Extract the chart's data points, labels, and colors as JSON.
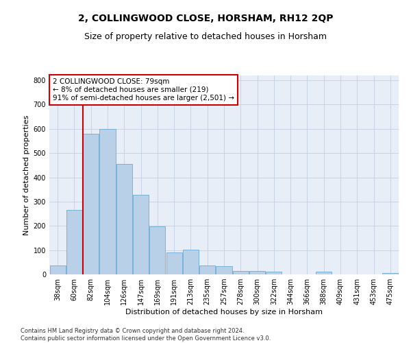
{
  "title": "2, COLLINGWOOD CLOSE, HORSHAM, RH12 2QP",
  "subtitle": "Size of property relative to detached houses in Horsham",
  "xlabel": "Distribution of detached houses by size in Horsham",
  "ylabel": "Number of detached properties",
  "categories": [
    "38sqm",
    "60sqm",
    "82sqm",
    "104sqm",
    "126sqm",
    "147sqm",
    "169sqm",
    "191sqm",
    "213sqm",
    "235sqm",
    "257sqm",
    "278sqm",
    "300sqm",
    "322sqm",
    "344sqm",
    "366sqm",
    "388sqm",
    "409sqm",
    "431sqm",
    "453sqm",
    "475sqm"
  ],
  "values": [
    38,
    265,
    580,
    600,
    455,
    327,
    197,
    90,
    103,
    37,
    35,
    15,
    15,
    10,
    0,
    0,
    10,
    0,
    0,
    0,
    7
  ],
  "bar_color": "#b8d0e8",
  "bar_edge_color": "#6aaad4",
  "vline_color": "#cc0000",
  "annotation_line1": "2 COLLINGWOOD CLOSE: 79sqm",
  "annotation_line2": "← 8% of detached houses are smaller (219)",
  "annotation_line3": "91% of semi-detached houses are larger (2,501) →",
  "annotation_box_color": "#ffffff",
  "annotation_box_edge_color": "#cc0000",
  "ylim": [
    0,
    820
  ],
  "yticks": [
    0,
    100,
    200,
    300,
    400,
    500,
    600,
    700,
    800
  ],
  "grid_color": "#c8d4e4",
  "background_color": "#e8eef8",
  "footer_line1": "Contains HM Land Registry data © Crown copyright and database right 2024.",
  "footer_line2": "Contains public sector information licensed under the Open Government Licence v3.0.",
  "title_fontsize": 10,
  "subtitle_fontsize": 9,
  "axis_label_fontsize": 8,
  "tick_fontsize": 7,
  "annotation_fontsize": 7.5,
  "footer_fontsize": 6
}
